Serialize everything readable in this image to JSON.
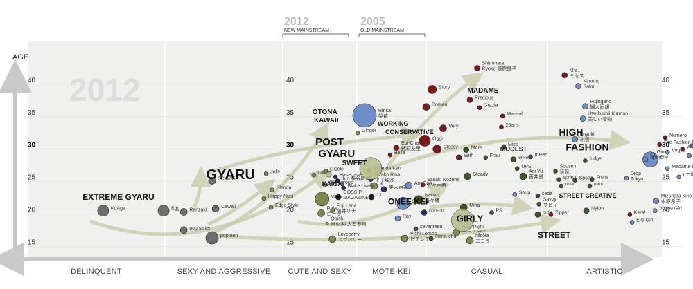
{
  "chart_data": {
    "type": "scatter",
    "ylabel": "AGE",
    "ylim": [
      13,
      45
    ],
    "y_ticks": [
      15,
      20,
      25,
      30,
      35,
      40
    ],
    "x_categories": [
      "DELINQUENT",
      "SEXY AND AGGRESSIVE",
      "CUTE AND SEXY",
      "MOTE-KEI",
      "CASUAL",
      "ARTISTIC"
    ],
    "year_marks": [
      {
        "year": "2012",
        "caption": "NEW MAINSTREAM",
        "position": 2.5
      },
      {
        "year": "2005",
        "caption": "OLD MAINSTREAM",
        "position": 3.25
      }
    ],
    "watermark": "2012",
    "group_labels": [
      {
        "label": "EXTREME GYARU",
        "x": 0.4,
        "y": 22.2,
        "size": 12
      },
      {
        "label": "GYARU",
        "x": 1.35,
        "y": 25.4,
        "size": 20
      },
      {
        "label": "OTONA",
        "x": 2.4,
        "y": 35.4,
        "size": 10
      },
      {
        "label": "KAWAII",
        "x": 2.42,
        "y": 34.1,
        "size": 10
      },
      {
        "label": "POST",
        "x": 2.44,
        "y": 30.6,
        "size": 15
      },
      {
        "label": "GYARU",
        "x": 2.48,
        "y": 28.8,
        "size": 15
      },
      {
        "label": "SWEET",
        "x": 2.8,
        "y": 27.5,
        "size": 10
      },
      {
        "label": "KAIGAI",
        "x": 2.53,
        "y": 24.3,
        "size": 9
      },
      {
        "label": "WORKING",
        "x": 3.3,
        "y": 33.6,
        "size": 9
      },
      {
        "label": "CONSERVATIVE",
        "x": 3.41,
        "y": 32.3,
        "size": 9
      },
      {
        "label": "MADAME",
        "x": 4.34,
        "y": 38.7,
        "size": 10
      },
      {
        "label": "MODEST",
        "x": 4.61,
        "y": 29.7,
        "size": 9
      },
      {
        "label": "ONEE KEI",
        "x": 3.45,
        "y": 21.5,
        "size": 12
      },
      {
        "label": "GIRLY",
        "x": 4.25,
        "y": 18.8,
        "size": 13
      },
      {
        "label": "HIGH",
        "x": 5.1,
        "y": 32.1,
        "size": 14
      },
      {
        "label": "FASHION",
        "x": 5.16,
        "y": 29.8,
        "size": 14
      },
      {
        "label": "STREET CREATIVE",
        "x": 5.1,
        "y": 22.5,
        "size": 9
      },
      {
        "label": "STREET",
        "x": 4.92,
        "y": 16.3,
        "size": 12
      }
    ],
    "series": [
      {
        "name": "",
        "color": "#6e6e6e",
        "points": [
          {
            "label": "KoAge",
            "x": 0.55,
            "y": 20.5,
            "r": 8
          },
          {
            "label": "Egg",
            "x": 0.99,
            "y": 20.5,
            "r": 8
          },
          {
            "label": "Ranzuki",
            "x": 1.16,
            "y": 20.3,
            "r": 5
          },
          {
            "label": "pop sister",
            "x": 1.16,
            "y": 17.5,
            "r": 5
          },
          {
            "label": "popteen",
            "x": 1.4,
            "y": 16.3,
            "r": 9
          },
          {
            "label": "SCawaii",
            "x": 1.4,
            "y": 25.1,
            "r": 5
          },
          {
            "label": "Cawaii",
            "x": 1.43,
            "y": 20.8,
            "r": 5
          }
        ]
      },
      {
        "name": "",
        "color": "#7e8a52",
        "points": [
          {
            "label": "Jelly",
            "x": 1.86,
            "y": 26.2,
            "r": 3
          },
          {
            "label": "Blenda",
            "x": 1.91,
            "y": 23.7,
            "r": 3
          },
          {
            "label": "Happy Nuts",
            "x": 1.84,
            "y": 22.4,
            "r": 3
          },
          {
            "label": "Edge Style",
            "x": 1.9,
            "y": 21.0,
            "r": 3
          },
          {
            "label": "Glitter",
            "x": 2.42,
            "y": 26.0,
            "r": 3
          },
          {
            "label": "Gisele",
            "x": 2.58,
            "y": 26.6,
            "r": 3
          },
          {
            "label": "Glamorous",
            "x": 2.57,
            "y": 24.5,
            "r": 3
          },
          {
            "label": "ViVi",
            "x": 2.53,
            "y": 22.3,
            "r": 10
          },
          {
            "label": "Rola\nローラ",
            "x": 2.52,
            "y": 20.1,
            "r": 5
          },
          {
            "label": "Ooishi\nMitsuki 大石参月",
            "x": 2.6,
            "y": 18.5,
            "r": 2
          },
          {
            "label": "Fuji Lena\n藤井リナ",
            "x": 2.67,
            "y": 20.5,
            "r": 3
          },
          {
            "label": "Loveberry\nラブベリー",
            "x": 2.67,
            "y": 16.1,
            "r": 5
          },
          {
            "label": "Miranda Kerr",
            "x": 3.18,
            "y": 26.7,
            "r": 3
          },
          {
            "label": "ar",
            "x": 3.25,
            "y": 24.3,
            "r": 5
          },
          {
            "label": "Pichi Lemon\nピチレモン",
            "x": 3.69,
            "y": 16.2,
            "r": 5
          },
          {
            "label": "Niko Pichi\nニコ☆プチ",
            "x": 4.25,
            "y": 17.2,
            "r": 5
          },
          {
            "label": "Nicola\nニコラ",
            "x": 4.36,
            "y": 15.9,
            "r": 5
          },
          {
            "label": "Ginger",
            "x": 3.01,
            "y": 32.5,
            "r": 3
          }
        ]
      },
      {
        "name": "",
        "color": "#1f1f1f",
        "points": [
          {
            "label": "Jun 長谷川潤",
            "x": 2.74,
            "y": 25.1,
            "r": 3
          },
          {
            "label": "GOSSIP\nMAGAZINES",
            "x": 2.75,
            "y": 22.6,
            "r": 4
          },
          {
            "label": "JJ",
            "x": 3.21,
            "y": 22.6,
            "r": 4
          }
        ]
      },
      {
        "name": "",
        "color": "#25325f",
        "points": [
          {
            "label": "Hasegawa",
            "x": 2.71,
            "y": 25.7,
            "r": 3
          },
          {
            "label": "Blake Lively",
            "x": 2.82,
            "y": 24.0,
            "r": 3
          },
          {
            "label": "Hirako Risa\n平子理沙",
            "x": 3.2,
            "y": 25.3,
            "r": 3
          },
          {
            "label": "美人百花",
            "x": 3.39,
            "y": 23.8,
            "r": 4
          },
          {
            "label": "non-no",
            "x": 3.97,
            "y": 20.2,
            "r": 4
          }
        ]
      },
      {
        "name": "",
        "color": "#6d8ec8",
        "points": [
          {
            "label": "CanCam",
            "x": 3.67,
            "y": 21.6,
            "r": 9
          },
          {
            "label": "Ray",
            "x": 3.59,
            "y": 19.3,
            "r": 4
          },
          {
            "label": "AneCan",
            "x": 3.75,
            "y": 24.4,
            "r": 5
          },
          {
            "label": "Rinka\n梨花",
            "x": 3.11,
            "y": 35.2,
            "r": 17
          },
          {
            "label": "Koyuki\n小雪",
            "x": 5.24,
            "y": 31.5,
            "r": 4
          },
          {
            "label": "Kimono\nSalon",
            "x": 5.27,
            "y": 39.7,
            "r": 4
          },
          {
            "label": "Fujingaho\n婦人画報",
            "x": 5.33,
            "y": 36.6,
            "r": 4
          },
          {
            "label": "Utsukushii Kimono\n美しい着物",
            "x": 5.31,
            "y": 34.7,
            "r": 4
          },
          {
            "label": "Elle",
            "x": 5.9,
            "y": 28.4,
            "r": 11
          },
          {
            "label": "Ginza",
            "x": 5.92,
            "y": 29.2,
            "r": 3
          },
          {
            "label": "Spur",
            "x": 5.86,
            "y": 28.4,
            "r": 3
          },
          {
            "label": "Vogue",
            "x": 6.05,
            "y": 29.5,
            "r": 3
          },
          {
            "label": "Madame Figaro",
            "x": 6.05,
            "y": 27.0,
            "r": 3
          },
          {
            "label": "L'Officiel Japon",
            "x": 6.15,
            "y": 25.7,
            "r": 3
          },
          {
            "label": "High Fashion",
            "x": 6.24,
            "y": 29.0,
            "r": 3
          },
          {
            "label": "Runway",
            "x": 6.26,
            "y": 30.5,
            "r": 3
          },
          {
            "label": "Fashion News",
            "x": 6.31,
            "y": 27.8,
            "r": 3
          },
          {
            "label": "Mode et Mode",
            "x": 6.45,
            "y": 26.8,
            "r": 3
          },
          {
            "label": "Drop\nTokyo",
            "x": 5.69,
            "y": 25.5,
            "r": 3
          },
          {
            "label": "Mizuhara Kiko\n水原希子",
            "x": 5.95,
            "y": 22.0,
            "r": 4
          },
          {
            "label": "Vogue Girl",
            "x": 5.94,
            "y": 20.5,
            "r": 3
          },
          {
            "label": "Elle Girl",
            "x": 5.74,
            "y": 18.7,
            "r": 3
          },
          {
            "label": "Soup",
            "x": 4.73,
            "y": 23.0,
            "r": 3
          }
        ]
      },
      {
        "name": "",
        "color": "#7a1a1a",
        "points": [
          {
            "label": "Shinohara\nRyoko 篠原良子",
            "x": 4.42,
            "y": 42.5,
            "r": 4
          },
          {
            "label": "Mrs.\nミセス",
            "x": 5.15,
            "y": 41.4,
            "r": 4
          },
          {
            "label": "Story",
            "x": 4.05,
            "y": 39.2,
            "r": 6
          },
          {
            "label": "Precious",
            "x": 4.36,
            "y": 37.6,
            "r": 4
          },
          {
            "label": "Domani",
            "x": 4.0,
            "y": 36.5,
            "r": 5
          },
          {
            "label": "Grazia",
            "x": 4.44,
            "y": 36.4,
            "r": 3
          },
          {
            "label": "Marisol",
            "x": 4.63,
            "y": 35.1,
            "r": 3
          },
          {
            "label": "25ans",
            "x": 4.62,
            "y": 33.4,
            "r": 3
          },
          {
            "label": "Very",
            "x": 4.14,
            "y": 33.2,
            "r": 5
          },
          {
            "label": "Oggi",
            "x": 3.98,
            "y": 31.3,
            "r": 8
          },
          {
            "label": "Classy",
            "x": 4.09,
            "y": 30.0,
            "r": 6
          },
          {
            "label": "Ebi-Chan\n蛯原友里",
            "x": 3.57,
            "y": 30.2,
            "r": 4
          },
          {
            "label": "Baila",
            "x": 3.48,
            "y": 29.1,
            "r": 3
          },
          {
            "label": "With",
            "x": 4.27,
            "y": 28.7,
            "r": 4
          },
          {
            "label": "Sasaki Nozomi\n佐々木希",
            "x": 3.95,
            "y": 24.5,
            "r": 3
          },
          {
            "label": "The Fashion Post",
            "x": 5.98,
            "y": 30.7,
            "r": 3
          },
          {
            "label": "WWD",
            "x": 6.18,
            "y": 30.0,
            "r": 3
          },
          {
            "label": "Numero",
            "x": 6.03,
            "y": 31.8,
            "r": 3
          },
          {
            "label": "Kera!",
            "x": 5.72,
            "y": 19.9,
            "r": 3
          },
          {
            "label": "Zipper",
            "x": 5.03,
            "y": 19.9,
            "r": 3
          }
        ]
      },
      {
        "name": "",
        "color": "#3e5527",
        "points": [
          {
            "label": "Nanao\n菜々緒",
            "x": 3.89,
            "y": 22.2,
            "r": 6
          },
          {
            "label": "Mina",
            "x": 4.31,
            "y": 21.0,
            "r": 5
          },
          {
            "label": "PS",
            "x": 4.54,
            "y": 20.2,
            "r": 3
          },
          {
            "label": "Steady",
            "x": 4.34,
            "y": 25.8,
            "r": 5
          },
          {
            "label": "More",
            "x": 4.33,
            "y": 29.9,
            "r": 4
          },
          {
            "label": "Miss",
            "x": 4.64,
            "y": 30.4,
            "r": 3
          },
          {
            "label": "Frau",
            "x": 4.49,
            "y": 28.7,
            "r": 3
          },
          {
            "label": "an-an",
            "x": 4.72,
            "y": 28.4,
            "r": 4
          },
          {
            "label": "UPS",
            "x": 4.75,
            "y": 27.0,
            "r": 3
          },
          {
            "label": "Aoi Yu\n蒼井優",
            "x": 4.8,
            "y": 25.8,
            "r": 5
          },
          {
            "label": "seda",
            "x": 4.92,
            "y": 22.8,
            "r": 3
          },
          {
            "label": "Savvy\nサビィ",
            "x": 4.93,
            "y": 21.5,
            "r": 3
          },
          {
            "label": "cutie",
            "x": 4.92,
            "y": 19.9,
            "r": 4
          },
          {
            "label": "fudge",
            "x": 5.33,
            "y": 28.2,
            "r": 3
          },
          {
            "label": "Sousen\n装苑",
            "x": 5.07,
            "y": 26.6,
            "r": 3
          },
          {
            "label": "spring",
            "x": 5.1,
            "y": 25.3,
            "r": 3
          },
          {
            "label": "Spoon",
            "x": 5.24,
            "y": 25.2,
            "r": 3
          },
          {
            "label": "mini",
            "x": 5.12,
            "y": 24.3,
            "r": 3
          },
          {
            "label": "Fruits",
            "x": 5.39,
            "y": 25.3,
            "r": 3
          },
          {
            "label": "mini",
            "x": 5.37,
            "y": 24.3,
            "r": 3
          },
          {
            "label": "Nylon",
            "x": 5.34,
            "y": 20.5,
            "r": 4
          },
          {
            "label": "seventeen",
            "x": 3.85,
            "y": 17.7,
            "r": 3
          },
          {
            "label": "Hana-chu",
            "x": 4.04,
            "y": 16.2,
            "r": 3
          },
          {
            "label": "InRed",
            "x": 4.86,
            "y": 28.8,
            "r": 3
          }
        ]
      },
      {
        "name": "",
        "color": "#b8bc88",
        "points": [
          {
            "label": "",
            "x": 3.2,
            "y": 27.0,
            "r": 16
          },
          {
            "label": "",
            "x": 4.3,
            "y": 19.0,
            "r": 16
          },
          {
            "label": "",
            "x": 2.62,
            "y": 26.1,
            "r": 4
          }
        ]
      }
    ]
  }
}
